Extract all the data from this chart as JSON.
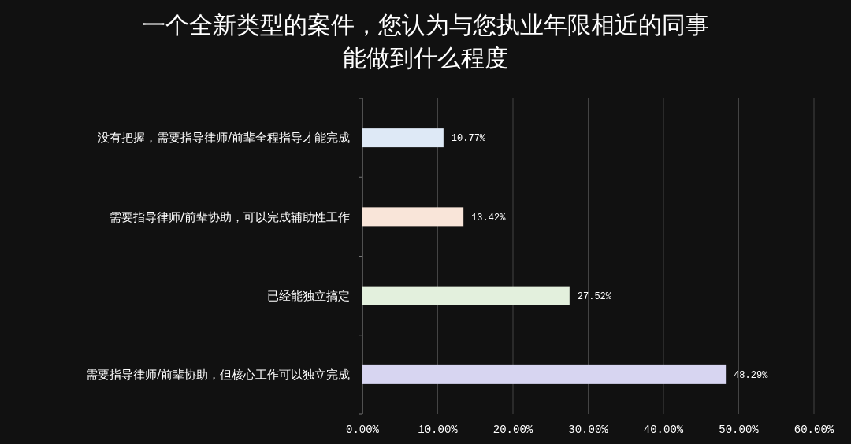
{
  "chart_data": {
    "type": "bar",
    "orientation": "horizontal",
    "title": "一个全新类型的案件，您认为与您执业年限相近的同事能做到什么程度",
    "categories": [
      "没有把握，需要指导律师/前辈全程指导才能完成",
      "需要指导律师/前辈协助，可以完成辅助性工作",
      "已经能独立搞定",
      "需要指导律师/前辈协助，但核心工作可以独立完成"
    ],
    "values": [
      10.77,
      13.42,
      27.52,
      48.29
    ],
    "colors": [
      "#dee9f6",
      "#f9e5d9",
      "#e3f0dd",
      "#d7d5f1"
    ],
    "value_labels": [
      "10.77%",
      "13.42%",
      "27.52%",
      "48.29%"
    ],
    "xlim": [
      0,
      60
    ],
    "xticks": [
      {
        "value": 0,
        "label": "0.00%"
      },
      {
        "value": 10,
        "label": "10.00%"
      },
      {
        "value": 20,
        "label": "20.00%"
      },
      {
        "value": 30,
        "label": "30.00%"
      },
      {
        "value": 40,
        "label": "40.00%"
      },
      {
        "value": 50,
        "label": "50.00%"
      },
      {
        "value": 60,
        "label": "60.00%"
      }
    ],
    "grid": "x"
  }
}
